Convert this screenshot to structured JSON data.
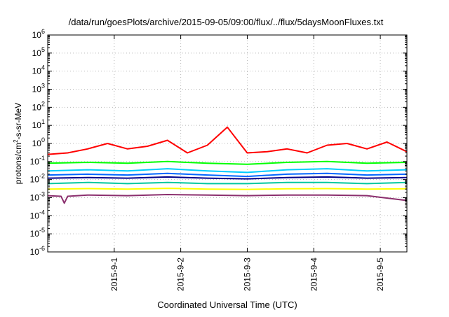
{
  "chart_data": {
    "type": "line",
    "title": "/data/run/goesPlots/archive/2015-09-05/09:00/flux/../flux/5daysMoonFluxes.txt",
    "xlabel": "Coordinated Universal Time (UTC)",
    "ylabel": "protons/cm2-s-sr-MeV",
    "yscale": "log",
    "ylim": [
      1e-06,
      1000000.0
    ],
    "xlim": [
      0,
      5.4
    ],
    "grid": true,
    "x_ticks": [
      {
        "x": 1,
        "label": "2015-9-1"
      },
      {
        "x": 2,
        "label": "2015-9-2"
      },
      {
        "x": 3,
        "label": "2015-9-3"
      },
      {
        "x": 4,
        "label": "2015-9-4"
      },
      {
        "x": 5,
        "label": "2015-9-5"
      }
    ],
    "y_ticks": [
      {
        "exp": 6,
        "label": "6"
      },
      {
        "exp": 5,
        "label": "5"
      },
      {
        "exp": 4,
        "label": "4"
      },
      {
        "exp": 3,
        "label": "3"
      },
      {
        "exp": 2,
        "label": "2"
      },
      {
        "exp": 1,
        "label": "1"
      },
      {
        "exp": 0,
        "label": "0"
      },
      {
        "exp": -1,
        "label": "-1"
      },
      {
        "exp": -2,
        "label": "-2"
      },
      {
        "exp": -3,
        "label": "-3"
      },
      {
        "exp": -4,
        "label": "-4"
      },
      {
        "exp": -5,
        "label": "-5"
      },
      {
        "exp": -6,
        "label": "-6"
      }
    ],
    "series": [
      {
        "color": "#ff0000",
        "x": [
          0,
          0.3,
          0.6,
          0.9,
          1.2,
          1.5,
          1.8,
          2.1,
          2.4,
          2.7,
          3.0,
          3.3,
          3.6,
          3.9,
          4.2,
          4.5,
          4.8,
          5.1,
          5.4
        ],
        "y": [
          0.25,
          0.3,
          0.5,
          1.0,
          0.5,
          0.7,
          1.5,
          0.3,
          0.8,
          8.0,
          0.3,
          0.35,
          0.5,
          0.3,
          0.8,
          1.0,
          0.5,
          1.2,
          0.35
        ]
      },
      {
        "color": "#00ff00",
        "x": [
          0,
          0.6,
          1.2,
          1.8,
          2.4,
          3.0,
          3.6,
          4.2,
          4.8,
          5.4
        ],
        "y": [
          0.08,
          0.09,
          0.08,
          0.1,
          0.08,
          0.07,
          0.09,
          0.1,
          0.08,
          0.09
        ]
      },
      {
        "color": "#00ccff",
        "x": [
          0,
          0.6,
          1.2,
          1.8,
          2.4,
          3.0,
          3.6,
          4.2,
          4.8,
          5.4
        ],
        "y": [
          0.03,
          0.035,
          0.03,
          0.04,
          0.03,
          0.025,
          0.035,
          0.04,
          0.03,
          0.035
        ]
      },
      {
        "color": "#0066ff",
        "x": [
          0,
          0.6,
          1.2,
          1.8,
          2.4,
          3.0,
          3.6,
          4.2,
          4.8,
          5.4
        ],
        "y": [
          0.018,
          0.02,
          0.018,
          0.022,
          0.018,
          0.015,
          0.02,
          0.022,
          0.018,
          0.02
        ]
      },
      {
        "color": "#00008b",
        "x": [
          0,
          0.6,
          1.2,
          1.8,
          2.4,
          3.0,
          3.6,
          4.2,
          4.8,
          5.4
        ],
        "y": [
          0.012,
          0.013,
          0.012,
          0.014,
          0.012,
          0.011,
          0.013,
          0.014,
          0.012,
          0.013
        ]
      },
      {
        "color": "#00c8a0",
        "x": [
          0,
          0.6,
          1.2,
          1.8,
          2.4,
          3.0,
          3.6,
          4.2,
          4.8,
          5.4
        ],
        "y": [
          0.006,
          0.007,
          0.006,
          0.007,
          0.006,
          0.006,
          0.007,
          0.007,
          0.006,
          0.007
        ]
      },
      {
        "color": "#ffff00",
        "x": [
          0,
          0.6,
          1.2,
          1.8,
          2.4,
          3.0,
          3.6,
          4.2,
          4.8,
          5.4
        ],
        "y": [
          0.003,
          0.0032,
          0.003,
          0.0033,
          0.003,
          0.0029,
          0.0031,
          0.0032,
          0.003,
          0.0031
        ]
      },
      {
        "color": "#8b2f6e",
        "x": [
          0,
          0.2,
          0.25,
          0.3,
          0.6,
          1.2,
          1.8,
          2.4,
          3.0,
          3.6,
          4.2,
          4.8,
          5.4
        ],
        "y": [
          0.0013,
          0.0012,
          0.0005,
          0.0012,
          0.0014,
          0.0013,
          0.0015,
          0.0014,
          0.0013,
          0.0014,
          0.0014,
          0.0013,
          0.0007
        ]
      }
    ]
  }
}
